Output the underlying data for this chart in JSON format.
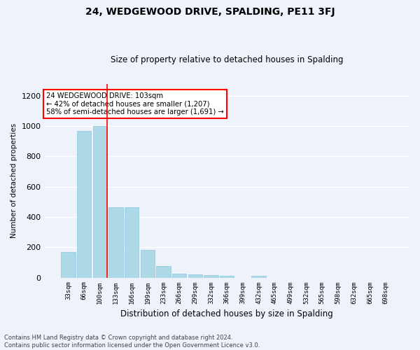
{
  "title": "24, WEDGEWOOD DRIVE, SPALDING, PE11 3FJ",
  "subtitle": "Size of property relative to detached houses in Spalding",
  "xlabel": "Distribution of detached houses by size in Spalding",
  "ylabel": "Number of detached properties",
  "bar_labels": [
    "33sqm",
    "66sqm",
    "100sqm",
    "133sqm",
    "166sqm",
    "199sqm",
    "233sqm",
    "266sqm",
    "299sqm",
    "332sqm",
    "366sqm",
    "399sqm",
    "432sqm",
    "465sqm",
    "499sqm",
    "532sqm",
    "565sqm",
    "598sqm",
    "632sqm",
    "665sqm",
    "698sqm"
  ],
  "bar_values": [
    170,
    970,
    1000,
    463,
    463,
    185,
    75,
    27,
    20,
    17,
    12,
    0,
    13,
    0,
    0,
    0,
    0,
    0,
    0,
    0,
    0
  ],
  "bar_color": "#add8e6",
  "bar_edge_color": "#8ec8e0",
  "red_line_index": 2,
  "annotation_text": "24 WEDGEWOOD DRIVE: 103sqm\n← 42% of detached houses are smaller (1,207)\n58% of semi-detached houses are larger (1,691) →",
  "annotation_box_color": "white",
  "annotation_box_edge_color": "red",
  "ylim": [
    0,
    1280
  ],
  "yticks": [
    0,
    200,
    400,
    600,
    800,
    1000,
    1200
  ],
  "footer_line1": "Contains HM Land Registry data © Crown copyright and database right 2024.",
  "footer_line2": "Contains public sector information licensed under the Open Government Licence v3.0.",
  "bg_color": "#eef2fb",
  "plot_bg_color": "#eef2fb",
  "grid_color": "white"
}
